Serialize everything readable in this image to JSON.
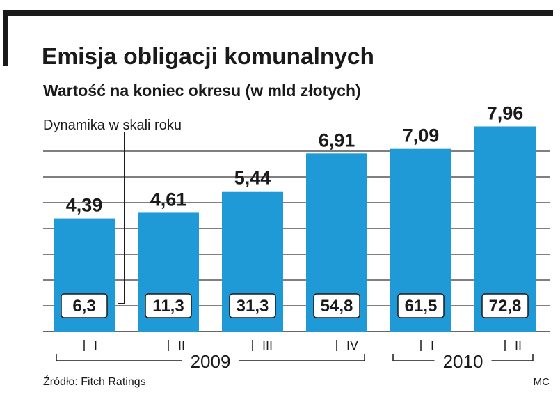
{
  "chart_data": {
    "type": "bar",
    "title": "Emisja obligacji komunalnych",
    "subtitle": "Wartość na koniec okresu (w mld złotych)",
    "annotation": "Dynamika w skali roku",
    "categories": [
      "I",
      "II",
      "III",
      "IV",
      "I",
      "II"
    ],
    "values": [
      4.39,
      4.61,
      5.44,
      6.91,
      7.09,
      7.96
    ],
    "value_labels": [
      "4,39",
      "4,61",
      "5,44",
      "6,91",
      "7,09",
      "7,96"
    ],
    "growth_labels": [
      "6,3",
      "11,3",
      "31,3",
      "54,8",
      "61,5",
      "72,8"
    ],
    "year_groups": [
      {
        "label": "2009",
        "from": 0,
        "to": 3
      },
      {
        "label": "2010",
        "from": 4,
        "to": 5
      }
    ],
    "ylim": [
      0,
      9
    ],
    "grid": true,
    "source": "Źródło: Fitch Ratings",
    "credit": "MC",
    "colors": {
      "bar": "#1f9ad6",
      "text": "#1a1a1a",
      "grid": "#333333"
    }
  }
}
